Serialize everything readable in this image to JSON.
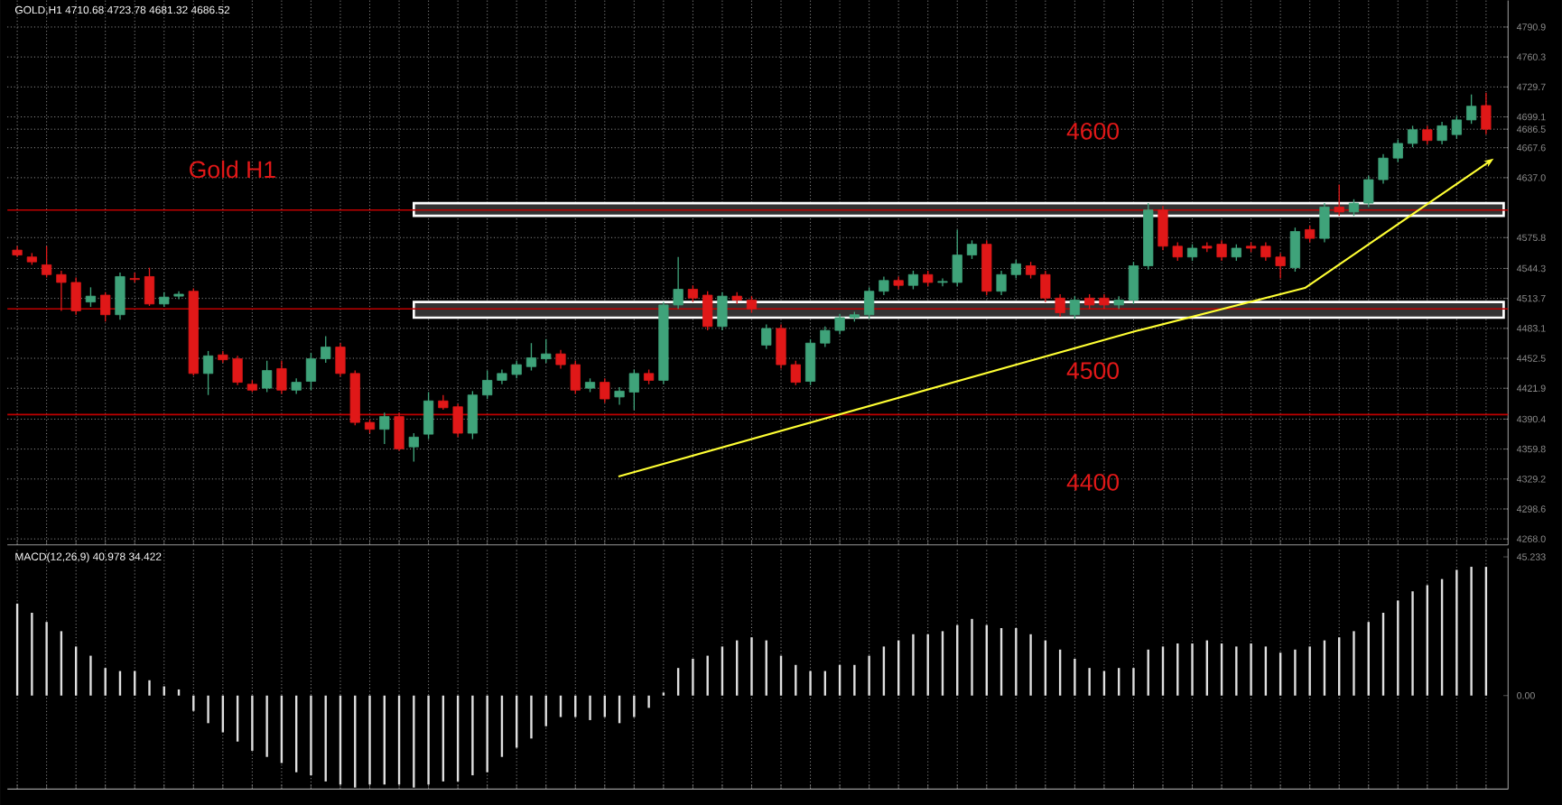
{
  "chart_data": [
    {
      "type": "candlestick",
      "title": "GOLD,H1 4710.68 4723.78 4681.32 4686.52",
      "annotations": [
        "Gold H1",
        "4600",
        "4500",
        "4400"
      ],
      "categories": [
        null,
        null,
        null,
        null,
        null,
        null,
        null,
        null,
        null,
        null,
        null,
        null,
        null,
        null,
        null,
        null,
        null,
        null,
        null,
        null,
        null,
        null,
        null,
        null,
        null,
        null,
        null,
        null,
        null,
        null,
        null,
        null,
        null,
        null,
        null,
        null,
        null,
        null,
        null,
        null,
        null,
        null,
        null,
        null,
        null,
        null,
        null,
        null,
        null,
        null,
        null,
        null,
        null,
        null,
        null,
        null,
        null,
        null,
        null,
        null,
        null,
        null,
        null,
        null,
        null,
        null,
        null,
        null,
        null,
        null,
        null,
        null,
        null,
        null,
        null,
        null,
        null,
        null,
        null,
        null,
        null,
        null,
        null,
        null,
        null,
        null,
        null,
        null,
        null,
        null,
        null,
        null,
        null,
        null,
        null,
        null,
        null,
        null,
        null,
        null,
        null
      ],
      "ohlc": [
        [
          4563,
          4567,
          4556,
          4558
        ],
        [
          4556,
          4560,
          4548,
          4551
        ],
        [
          4548,
          4567,
          4535,
          4538
        ],
        [
          4538,
          4542,
          4501,
          4530
        ],
        [
          4530,
          4535,
          4497,
          4501
        ],
        [
          4510,
          4525,
          4505,
          4516
        ],
        [
          4517,
          4520,
          4490,
          4497
        ],
        [
          4497,
          4540,
          4492,
          4536
        ],
        [
          4534,
          4540,
          4530,
          4533
        ],
        [
          4536,
          4545,
          4506,
          4508
        ],
        [
          4508,
          4520,
          4505,
          4515
        ],
        [
          4516,
          4521,
          4513,
          4518
        ],
        [
          4521,
          4524,
          4435,
          4437
        ],
        [
          4437,
          4460,
          4415,
          4455
        ],
        [
          4456,
          4460,
          4448,
          4451
        ],
        [
          4452,
          4455,
          4425,
          4428
        ],
        [
          4426,
          4430,
          4418,
          4420
        ],
        [
          4422,
          4450,
          4418,
          4440
        ],
        [
          4442,
          4450,
          4416,
          4420
        ],
        [
          4420,
          4432,
          4416,
          4428
        ],
        [
          4429,
          4458,
          4420,
          4452
        ],
        [
          4452,
          4475,
          4448,
          4464
        ],
        [
          4464,
          4468,
          4434,
          4437
        ],
        [
          4437,
          4440,
          4384,
          4387
        ],
        [
          4387,
          4390,
          4376,
          4380
        ],
        [
          4380,
          4397,
          4365,
          4393
        ],
        [
          4393,
          4397,
          4358,
          4360
        ],
        [
          4362,
          4376,
          4347,
          4372
        ],
        [
          4375,
          4418,
          4370,
          4409
        ],
        [
          4409,
          4415,
          4400,
          4402
        ],
        [
          4403,
          4406,
          4372,
          4376
        ],
        [
          4376,
          4419,
          4370,
          4415
        ],
        [
          4415,
          4440,
          4411,
          4430
        ],
        [
          4430,
          4441,
          4426,
          4437
        ],
        [
          4436,
          4450,
          4432,
          4446
        ],
        [
          4444,
          4468,
          4440,
          4453
        ],
        [
          4452,
          4472,
          4448,
          4457
        ],
        [
          4457,
          4461,
          4442,
          4446
        ],
        [
          4446,
          4450,
          4416,
          4420
        ],
        [
          4422,
          4432,
          4418,
          4428
        ],
        [
          4428,
          4432,
          4407,
          4411
        ],
        [
          4413,
          4423,
          4405,
          4419
        ],
        [
          4418,
          4441,
          4400,
          4437
        ],
        [
          4437,
          4441,
          4426,
          4430
        ],
        [
          4430,
          4510,
          4426,
          4507
        ],
        [
          4507,
          4556,
          4503,
          4523
        ],
        [
          4523,
          4527,
          4510,
          4514
        ],
        [
          4517,
          4521,
          4481,
          4485
        ],
        [
          4485,
          4520,
          4481,
          4516
        ],
        [
          4516,
          4520,
          4508,
          4512
        ],
        [
          4512,
          4516,
          4499,
          4503
        ],
        [
          4466,
          4487,
          4462,
          4483
        ],
        [
          4483,
          4487,
          4442,
          4446
        ],
        [
          4446,
          4450,
          4425,
          4428
        ],
        [
          4429,
          4472,
          4425,
          4468
        ],
        [
          4468,
          4485,
          4464,
          4481
        ],
        [
          4481,
          4498,
          4477,
          4494
        ],
        [
          4494,
          4500,
          4490,
          4497
        ],
        [
          4497,
          4525,
          4493,
          4521
        ],
        [
          4521,
          4536,
          4517,
          4532
        ],
        [
          4532,
          4536,
          4523,
          4527
        ],
        [
          4527,
          4542,
          4523,
          4538
        ],
        [
          4538,
          4542,
          4526,
          4530
        ],
        [
          4530,
          4534,
          4526,
          4531
        ],
        [
          4530,
          4584,
          4526,
          4558
        ],
        [
          4558,
          4573,
          4554,
          4569
        ],
        [
          4569,
          4573,
          4517,
          4521
        ],
        [
          4521,
          4542,
          4517,
          4538
        ],
        [
          4538,
          4553,
          4534,
          4549
        ],
        [
          4547,
          4551,
          4534,
          4538
        ],
        [
          4538,
          4542,
          4510,
          4514
        ],
        [
          4514,
          4518,
          4495,
          4499
        ],
        [
          4497,
          4516,
          4493,
          4512
        ],
        [
          4514,
          4518,
          4503,
          4507
        ],
        [
          4514,
          4518,
          4503,
          4507
        ],
        [
          4507,
          4516,
          4503,
          4512
        ],
        [
          4512,
          4551,
          4508,
          4547
        ],
        [
          4547,
          4611,
          4543,
          4604
        ],
        [
          4604,
          4608,
          4563,
          4567
        ],
        [
          4567,
          4571,
          4552,
          4556
        ],
        [
          4556,
          4569,
          4552,
          4565
        ],
        [
          4567,
          4571,
          4561,
          4565
        ],
        [
          4569,
          4573,
          4552,
          4556
        ],
        [
          4556,
          4569,
          4552,
          4565
        ],
        [
          4567,
          4571,
          4561,
          4565
        ],
        [
          4567,
          4571,
          4552,
          4556
        ],
        [
          4556,
          4560,
          4534,
          4547
        ],
        [
          4545,
          4586,
          4541,
          4582
        ],
        [
          4584,
          4588,
          4571,
          4575
        ],
        [
          4575,
          4611,
          4571,
          4607
        ],
        [
          4607,
          4630,
          4598,
          4602
        ],
        [
          4602,
          4615,
          4598,
          4611
        ],
        [
          4611,
          4639,
          4607,
          4635
        ],
        [
          4635,
          4661,
          4631,
          4657
        ],
        [
          4657,
          4676,
          4653,
          4672
        ],
        [
          4672,
          4690,
          4668,
          4686
        ],
        [
          4686,
          4690,
          4671,
          4675
        ],
        [
          4675,
          4694,
          4671,
          4690
        ],
        [
          4681,
          4700,
          4677,
          4696
        ],
        [
          4696,
          4722,
          4692,
          4710
        ],
        [
          4710.68,
          4723.78,
          4681.32,
          4686.52
        ]
      ],
      "ylim": [
        4262,
        4818
      ],
      "yticks": [
        {
          "value": 4268.0,
          "label": "4268.0"
        },
        {
          "value": 4298.6,
          "label": "4298.6"
        },
        {
          "value": 4329.2,
          "label": "4329.2"
        },
        {
          "value": 4359.8,
          "label": "4359.8"
        },
        {
          "value": 4390.4,
          "label": "4390.4"
        },
        {
          "value": 4421.9,
          "label": "4421.9"
        },
        {
          "value": 4452.5,
          "label": "4452.5"
        },
        {
          "value": 4483.1,
          "label": "4483.1"
        },
        {
          "value": 4513.7,
          "label": "4513.7"
        },
        {
          "value": 4544.3,
          "label": "4544.3"
        },
        {
          "value": 4575.8,
          "label": "4575.8"
        },
        {
          "value": 4637.0,
          "label": "4637.0"
        },
        {
          "value": 4667.6,
          "label": "4667.6"
        },
        {
          "value": 4686.52,
          "label": "4686.5"
        },
        {
          "value": 4699.1,
          "label": "4699.1"
        },
        {
          "value": 4729.7,
          "label": "4729.7"
        },
        {
          "value": 4760.3,
          "label": "4760.3"
        },
        {
          "value": 4790.9,
          "label": "4790.9"
        }
      ],
      "grid": true,
      "ref_lines": [
        {
          "axis": "y",
          "value": 4604,
          "color": "#c00000"
        },
        {
          "axis": "y",
          "value": 4503,
          "color": "#c00000"
        },
        {
          "axis": "y",
          "value": 4395,
          "color": "#c00000"
        }
      ],
      "bands": [
        {
          "axis": "y",
          "from": 4598,
          "to": 4611,
          "color": "#ffffff"
        },
        {
          "axis": "y",
          "from": 4494,
          "to": 4510,
          "color": "#ffffff"
        }
      ]
    },
    {
      "type": "bar",
      "title": "MACD(12,26,9) 40.978 34.422",
      "color": "#e0e0e0",
      "categories": [
        null,
        null,
        null,
        null,
        null,
        null,
        null,
        null,
        null,
        null,
        null,
        null,
        null,
        null,
        null,
        null,
        null,
        null,
        null,
        null,
        null,
        null,
        null,
        null,
        null,
        null,
        null,
        null,
        null,
        null,
        null,
        null,
        null,
        null,
        null,
        null,
        null,
        null,
        null,
        null,
        null,
        null,
        null,
        null,
        null,
        null,
        null,
        null,
        null,
        null,
        null,
        null,
        null,
        null,
        null,
        null,
        null,
        null,
        null,
        null,
        null,
        null,
        null,
        null,
        null,
        null,
        null,
        null,
        null,
        null,
        null,
        null,
        null,
        null,
        null,
        null,
        null,
        null,
        null,
        null,
        null,
        null,
        null,
        null,
        null,
        null,
        null,
        null,
        null,
        null,
        null,
        null,
        null,
        null,
        null,
        null,
        null,
        null,
        null,
        null,
        null
      ],
      "values": [
        30,
        27,
        24,
        21,
        16,
        13,
        9,
        8,
        8,
        5,
        3,
        2,
        -5,
        -9,
        -12,
        -15,
        -18,
        -20,
        -22,
        -25,
        -26,
        -28,
        -29,
        -30,
        -29,
        -29,
        -29,
        -30,
        -29,
        -28,
        -28,
        -26,
        -25,
        -20,
        -17,
        -14,
        -10,
        -7,
        -7,
        -8,
        -7,
        -9,
        -7,
        -4,
        1,
        9,
        12,
        13,
        16,
        18,
        19,
        18,
        13,
        10,
        8,
        8,
        10,
        10,
        13,
        16,
        18,
        20,
        20,
        21,
        23,
        25,
        23,
        22,
        22,
        20,
        18,
        15,
        12,
        9,
        8,
        9,
        9,
        15,
        16,
        17,
        17,
        18,
        17,
        16,
        17,
        16,
        14,
        15,
        16,
        18,
        19,
        21,
        24,
        27,
        31,
        34,
        36,
        38,
        41,
        42,
        42
      ],
      "ylim": [
        -30.5,
        48
      ],
      "yticks": [
        {
          "value": 0,
          "label": "0.00"
        },
        {
          "value": 45.233,
          "label": "45.233"
        }
      ],
      "grid": "x"
    }
  ]
}
